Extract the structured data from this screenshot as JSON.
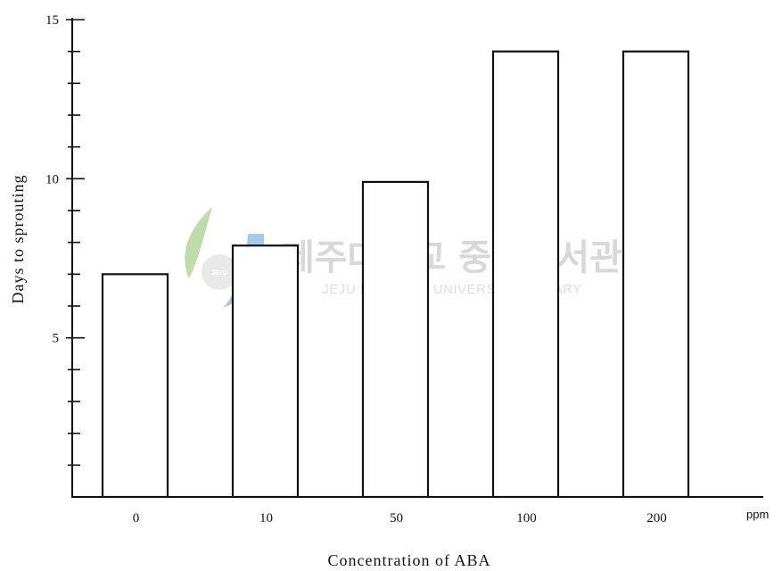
{
  "chart_data": {
    "type": "bar",
    "categories": [
      "0",
      "10",
      "50",
      "100",
      "200"
    ],
    "values": [
      7,
      7.9,
      9.9,
      14,
      14
    ],
    "xlabel": "Concentration  of  ABA",
    "ylabel": "Days  to  sprouting",
    "x_unit": "ppm",
    "ylim": [
      0,
      15
    ],
    "yticks": [
      "5",
      "10",
      "15"
    ],
    "grid": false,
    "legend": "none"
  },
  "watermark": {
    "korean": "제주대학교 중앙도서관",
    "english": "JEJU NATIONAL UNIVERSITY  LIBRARY",
    "badge": "JEJU"
  },
  "colors": {
    "bar_fill": "#ffffff",
    "bar_stroke": "#111111",
    "watermark_green": "#8bbf6a",
    "watermark_blue": "#5a9fd6"
  }
}
